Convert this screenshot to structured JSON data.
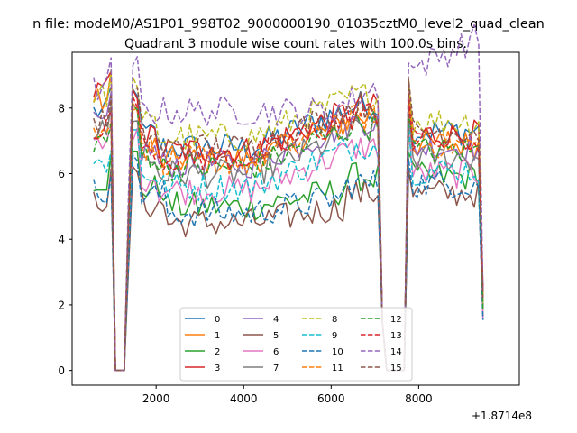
{
  "chart_data": {
    "type": "line",
    "suptitle": "n file: modeM0/AS1P01_998T02_9000000190_01035cztM0_level2_quad_clean",
    "title": "Quadrant 3 module wise count rates with 100.0s bins.",
    "xlabel": "",
    "ylabel": "",
    "offset_text": "+1.8714e8",
    "xlim": [
      80,
      10300
    ],
    "ylim": [
      -0.45,
      9.7
    ],
    "xticks": [
      2000,
      4000,
      6000,
      8000
    ],
    "xtick_labels": [
      "2000",
      "4000",
      "6000",
      "8000"
    ],
    "yticks": [
      0,
      2,
      4,
      6,
      8
    ],
    "ytick_labels": [
      "0",
      "2",
      "4",
      "6",
      "8"
    ],
    "grid": false,
    "legend_position": "lower-center",
    "x_range": [
      570,
      9470
    ],
    "bin_width": 100,
    "gaps": [
      [
        1050,
        1340
      ],
      [
        7250,
        7690
      ]
    ],
    "series": [
      {
        "name": "0",
        "color": "#1f77b4",
        "dash": "solid",
        "profile": "mid",
        "v0": 7.9,
        "level": 6.9
      },
      {
        "name": "1",
        "color": "#ff7f0e",
        "dash": "solid",
        "profile": "mid",
        "v0": 8.2,
        "level": 6.5
      },
      {
        "name": "2",
        "color": "#2ca02c",
        "dash": "solid",
        "profile": "low",
        "v0": 5.8,
        "level": 5.0
      },
      {
        "name": "3",
        "color": "#d62728",
        "dash": "solid",
        "profile": "mid",
        "v0": 8.5,
        "level": 6.8
      },
      {
        "name": "4",
        "color": "#9467bd",
        "dash": "solid",
        "profile": "mid",
        "v0": 7.5,
        "level": 6.4
      },
      {
        "name": "5",
        "color": "#8c564b",
        "dash": "solid",
        "profile": "low",
        "v0": 5.2,
        "level": 4.5
      },
      {
        "name": "6",
        "color": "#e377c2",
        "dash": "solid",
        "profile": "mid",
        "v0": 6.8,
        "level": 5.6
      },
      {
        "name": "7",
        "color": "#7f7f7f",
        "dash": "solid",
        "profile": "mid",
        "v0": 7.3,
        "level": 6.1
      },
      {
        "name": "8",
        "color": "#bcbd22",
        "dash": "dashed",
        "profile": "mid",
        "v0": 8.4,
        "level": 7.2
      },
      {
        "name": "9",
        "color": "#17becf",
        "dash": "dashed",
        "profile": "mid",
        "v0": 6.3,
        "level": 5.7
      },
      {
        "name": "10",
        "color": "#1f77b4",
        "dash": "dashed",
        "profile": "low",
        "v0": 5.5,
        "level": 4.8
      },
      {
        "name": "11",
        "color": "#ff7f0e",
        "dash": "dashed",
        "profile": "mid",
        "v0": 7.2,
        "level": 6.5
      },
      {
        "name": "12",
        "color": "#2ca02c",
        "dash": "dashed",
        "profile": "mid",
        "v0": 7.0,
        "level": 6.3
      },
      {
        "name": "13",
        "color": "#d62728",
        "dash": "dashed",
        "profile": "mid",
        "v0": 7.4,
        "level": 6.6
      },
      {
        "name": "14",
        "color": "#9467bd",
        "dash": "dashed",
        "profile": "high",
        "v0": 8.6,
        "level": 7.8
      },
      {
        "name": "15",
        "color": "#8c564b",
        "dash": "dashed",
        "profile": "mid",
        "v0": 7.6,
        "level": 6.9
      }
    ]
  }
}
